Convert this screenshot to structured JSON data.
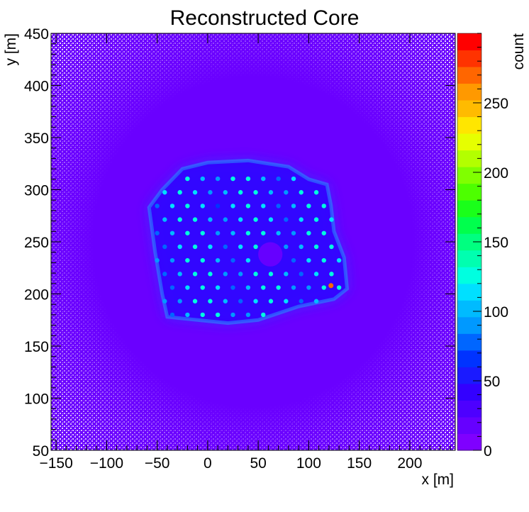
{
  "chart_data": {
    "type": "heatmap",
    "title": "Reconstructed Core",
    "xlabel": "x [m]",
    "ylabel": "y [m]",
    "zlabel": "count",
    "xlim": [
      -155,
      245
    ],
    "ylim": [
      50,
      450
    ],
    "zlim": [
      0,
      300
    ],
    "x_ticks": [
      -150,
      -100,
      -50,
      0,
      50,
      100,
      150,
      200
    ],
    "x_tick_labels": [
      "−150",
      "−100",
      "−50",
      "0",
      "50",
      "100",
      "150",
      "200"
    ],
    "y_ticks": [
      50,
      100,
      150,
      200,
      250,
      300,
      350,
      400,
      450
    ],
    "y_tick_labels": [
      "50",
      "100",
      "150",
      "200",
      "250",
      "300",
      "350",
      "400",
      "450"
    ],
    "z_ticks": [
      0,
      50,
      100,
      150,
      200,
      250
    ],
    "z_tick_labels": [
      "0",
      "50",
      "100",
      "150",
      "200",
      "250"
    ],
    "colorscale": [
      "#7f00ff",
      "#6600ff",
      "#4d00ff",
      "#3300ff",
      "#1a1aff",
      "#0033ff",
      "#0066ff",
      "#0099ff",
      "#00bbff",
      "#00e0ff",
      "#00ffe0",
      "#00ffb0",
      "#00ff80",
      "#00ff4d",
      "#1aff1a",
      "#4dff00",
      "#80ff00",
      "#b3ff00",
      "#e6ff00",
      "#ffe600",
      "#ffbb00",
      "#ff9900",
      "#ff6600",
      "#ff3300",
      "#ff0000"
    ],
    "background_color": "#6a00ff",
    "empty_bin_color": "#ffffff",
    "regions": [
      {
        "name": "array footprint",
        "polygon": [
          [
            -58,
            283
          ],
          [
            -45,
            300
          ],
          [
            -25,
            320
          ],
          [
            0,
            326
          ],
          [
            40,
            328
          ],
          [
            80,
            322
          ],
          [
            100,
            310
          ],
          [
            118,
            305
          ],
          [
            122,
            285
          ],
          [
            125,
            260
          ],
          [
            135,
            235
          ],
          [
            138,
            205
          ],
          [
            125,
            195
          ],
          [
            90,
            188
          ],
          [
            50,
            175
          ],
          [
            20,
            172
          ],
          [
            -10,
            175
          ],
          [
            -40,
            178
          ],
          [
            -45,
            200
          ],
          [
            -52,
            240
          ]
        ],
        "mean_count": 45
      },
      {
        "name": "detector grid",
        "x_start": -50,
        "x_end": 130,
        "y_start": 180,
        "y_end": 320,
        "spacing": 15,
        "peak_count": 130
      },
      {
        "name": "central hole",
        "center": [
          62,
          238
        ],
        "radius": 12,
        "mean_count": 20
      },
      {
        "name": "hotspot",
        "center": [
          122,
          208
        ],
        "peak_count": 270
      }
    ]
  }
}
